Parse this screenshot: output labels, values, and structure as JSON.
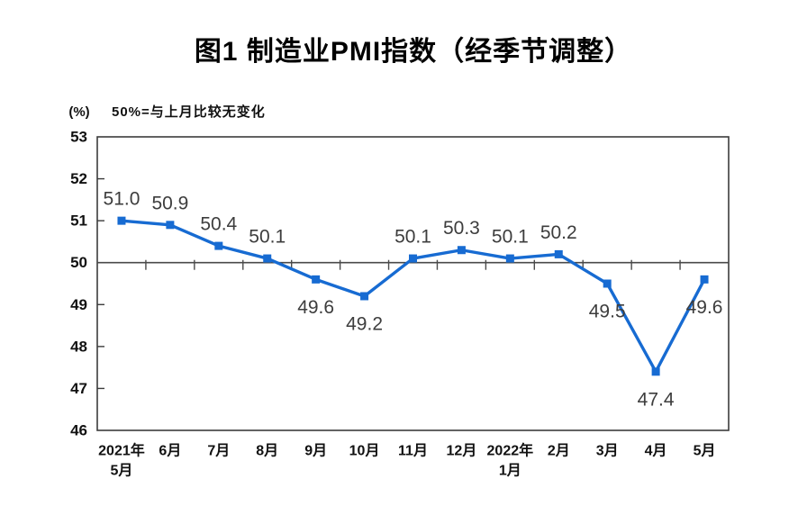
{
  "figure": {
    "title": "图1 制造业PMI指数（经季节调整）",
    "y_unit_label": "(%)",
    "reference_note": "50%=与上月比较无变化"
  },
  "chart_data": {
    "type": "line",
    "title": "图1 制造业PMI指数（经季节调整）",
    "categories": [
      "2021年\n5月",
      "6月",
      "7月",
      "8月",
      "9月",
      "10月",
      "11月",
      "12月",
      "2022年\n1月",
      "2月",
      "3月",
      "4月",
      "5月"
    ],
    "values": [
      51.0,
      50.9,
      50.4,
      50.1,
      49.6,
      49.2,
      50.1,
      50.3,
      50.1,
      50.2,
      49.5,
      47.4,
      49.6
    ],
    "data_labels": [
      "51.0",
      "50.9",
      "50.4",
      "50.1",
      "49.6",
      "49.2",
      "50.1",
      "50.3",
      "50.1",
      "50.2",
      "49.5",
      "47.4",
      "49.6"
    ],
    "label_sides": [
      "above",
      "above",
      "above",
      "above",
      "below",
      "below",
      "above",
      "above",
      "above",
      "above",
      "below",
      "below",
      "below"
    ],
    "xlabel": "",
    "ylabel": "(%)",
    "ylim": [
      46,
      53
    ],
    "yticks": [
      53,
      52,
      51,
      50,
      49,
      48,
      47,
      46
    ],
    "reference_line": 50,
    "reference_note": "50%=与上月比较无变化",
    "grid": false,
    "legend": "none",
    "marker": "square",
    "colors": {
      "line": "#176bd2",
      "marker": "#176bd2",
      "data_label": "#3d3d3d",
      "axis_text": "#111111",
      "axis_line": "#3c3c3c",
      "reference_line": "#4a4a4a",
      "background": "#ffffff"
    }
  }
}
